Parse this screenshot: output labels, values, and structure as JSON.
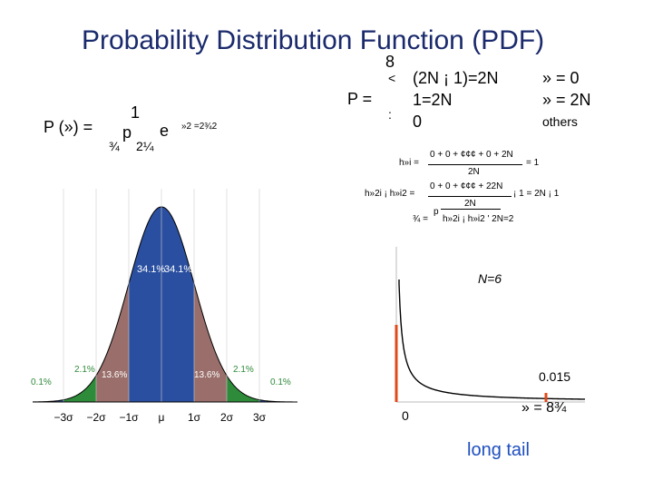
{
  "title": "Probability Distribution Function (PDF)",
  "normal_pdf": {
    "lhs": "P (») =",
    "one": "1",
    "p": "p",
    "e": "e",
    "exponent": "»2 =2¾2",
    "den1": "¾",
    "den2": "2¼"
  },
  "piecewise": {
    "brace_top": "8",
    "brace_mid": "<",
    "brace_bot": ":",
    "lhs": "P =",
    "row1_expr": "(2N ¡ 1)=2N",
    "row2_expr": "1=2N",
    "row3_expr": "0",
    "row1_cond": "» = 0",
    "row2_cond": "» = 2N",
    "row3_cond": "others"
  },
  "mean_formula": {
    "lhs": "h»i =",
    "num": "0 + 0 + ¢¢¢ + 0 + 2N",
    "den": "2N",
    "rhs": "= 1"
  },
  "var_formula": {
    "lhs": "h»2i ¡ h»i2 =",
    "num": "0 + 0 + ¢¢¢ + 22N",
    "den": "2N",
    "rhs": "¡ 1 = 2N ¡ 1"
  },
  "sigma_formula": {
    "lhs": "¾ =",
    "p": "p",
    "expr": "h»2i ¡ h»i2 ' 2N=2"
  },
  "bell_chart": {
    "pct_01_left": "0.1%",
    "pct_21_left": "2.1%",
    "pct_136_left": "13.6%",
    "pct_341_left": "34.1%",
    "pct_341_right": "34.1%",
    "pct_136_right": "13.6%",
    "pct_21_right": "2.1%",
    "pct_01_right": "0.1%",
    "ticks": [
      "−3σ",
      "−2σ",
      "−1σ",
      "μ",
      "1σ",
      "2σ",
      "3σ"
    ],
    "colors": {
      "center": "#2a4fa0",
      "middle": "#9a6f6b",
      "outer": "#2e8b3a",
      "tail": "#2a4fa0"
    }
  },
  "tail_chart": {
    "label_n": "N=6",
    "label_small": "0.015",
    "label_zero": "0",
    "label_xi": "» = 8¾",
    "label_longtail": "long tail",
    "colors": {
      "curve": "#000000",
      "spike": "#e04a1a"
    }
  }
}
